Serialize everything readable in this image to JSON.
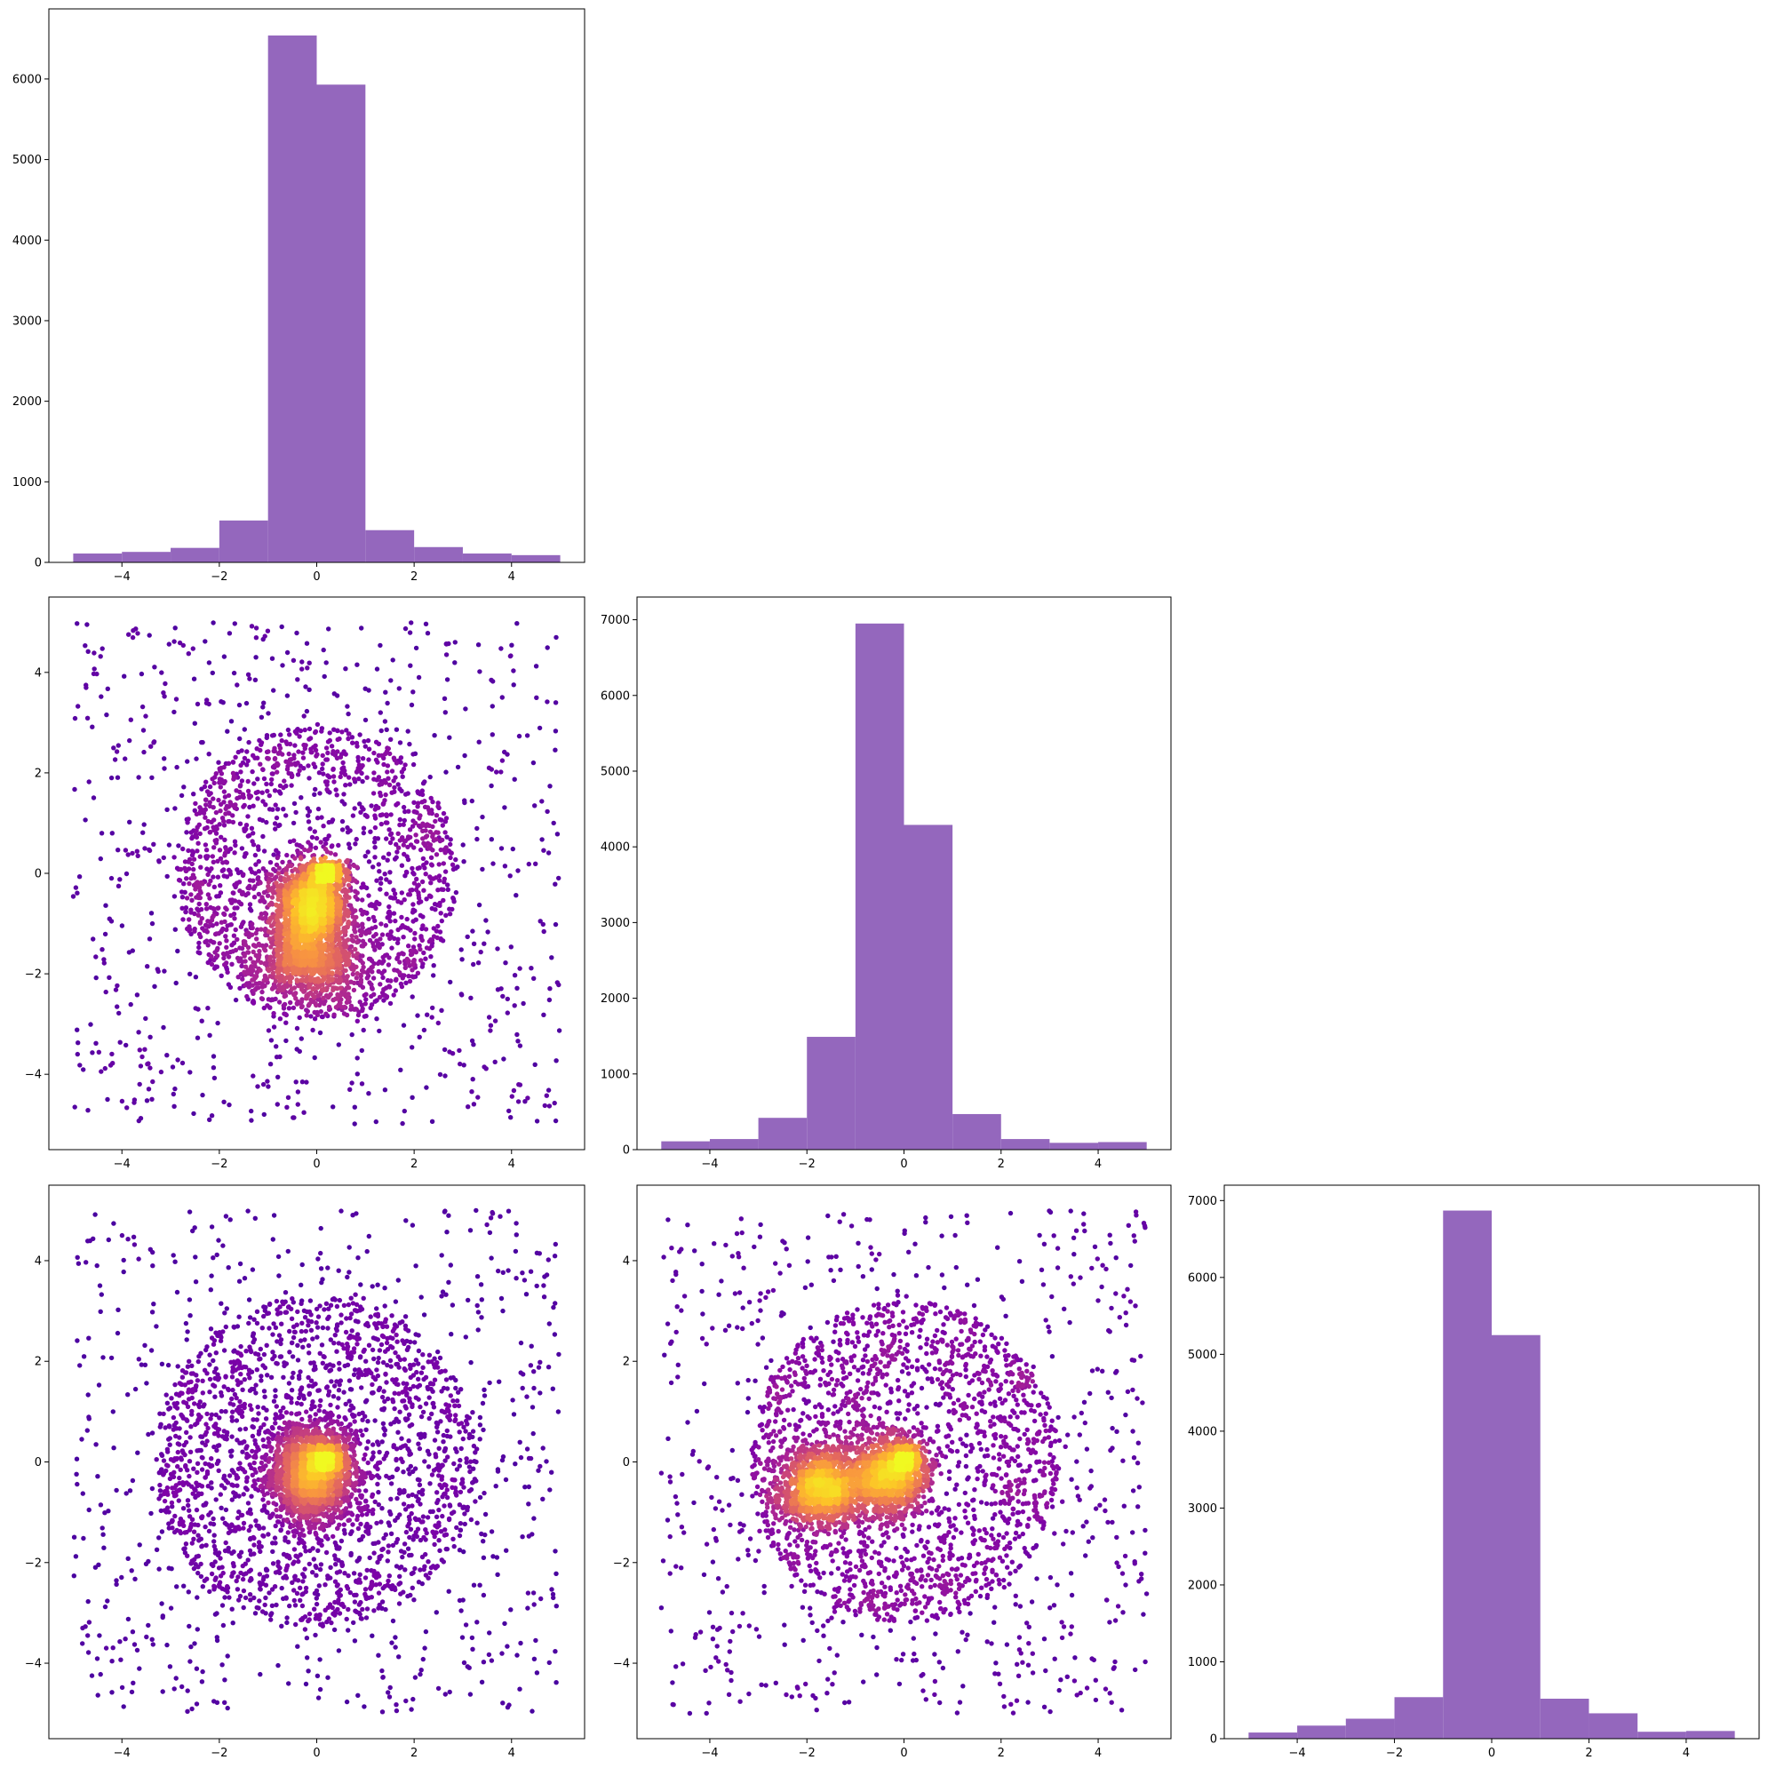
{
  "figure_type": "corner plot (pair plot)",
  "colors": {
    "histogram_fill": "#9467bd",
    "scatter_colormap": "plasma",
    "scatter_low": "#2a0593",
    "scatter_mid": "#b12a90",
    "scatter_high": "#f0f921"
  },
  "chart_data": [
    {
      "panel": "row1-col1",
      "type": "bar",
      "title": "",
      "xlabel": "",
      "ylabel": "",
      "bin_edges": [
        -5,
        -4,
        -3,
        -2,
        -1,
        0,
        1,
        2,
        3,
        4,
        5
      ],
      "values": [
        110,
        130,
        180,
        520,
        6540,
        5930,
        400,
        190,
        110,
        90
      ],
      "xlim": [
        -5.5,
        5.5
      ],
      "ylim": [
        0,
        6870
      ],
      "xticks": [
        "−4",
        "−2",
        "0",
        "2",
        "4"
      ],
      "xtick_values": [
        -4,
        -2,
        0,
        2,
        4
      ],
      "yticks": [
        "0",
        "1000",
        "2000",
        "3000",
        "4000",
        "5000",
        "6000"
      ],
      "ytick_values": [
        0,
        1000,
        2000,
        3000,
        4000,
        5000,
        6000
      ]
    },
    {
      "panel": "row2-col1",
      "type": "scatter",
      "title": "",
      "xlabel": "",
      "ylabel": "",
      "xlim": [
        -5.5,
        5.5
      ],
      "ylim": [
        -5.5,
        5.5
      ],
      "xticks": [
        "−4",
        "−2",
        "0",
        "2",
        "4"
      ],
      "xtick_values": [
        -4,
        -2,
        0,
        2,
        4
      ],
      "yticks": [
        "−4",
        "−2",
        "0",
        "2",
        "4"
      ],
      "ytick_values": [
        -4,
        -2,
        0,
        2,
        4
      ],
      "components": [
        {
          "kind": "uniform",
          "count": 760,
          "range": [
            -5,
            5
          ]
        },
        {
          "kind": "ring",
          "count": 1300,
          "center": [
            0,
            0
          ],
          "radius": [
            0.9,
            2.9
          ]
        },
        {
          "kind": "gaussian",
          "count": 900,
          "center": [
            -0.2,
            -1.7
          ],
          "spread": [
            0.55,
            0.45
          ]
        },
        {
          "kind": "gaussian",
          "count": 1600,
          "center": [
            -0.1,
            -0.6
          ],
          "spread": [
            0.4,
            0.45
          ]
        },
        {
          "kind": "gaussian",
          "count": 250,
          "center": [
            0.25,
            0.05
          ],
          "spread": [
            0.18,
            0.08
          ]
        }
      ]
    },
    {
      "panel": "row2-col2",
      "type": "bar",
      "title": "",
      "xlabel": "",
      "ylabel": "",
      "bin_edges": [
        -5,
        -4,
        -3,
        -2,
        -1,
        0,
        1,
        2,
        3,
        4,
        5
      ],
      "values": [
        110,
        140,
        420,
        1490,
        6950,
        4290,
        470,
        140,
        90,
        100
      ],
      "xlim": [
        -5.5,
        5.5
      ],
      "ylim": [
        0,
        7300
      ],
      "xticks": [
        "−4",
        "−2",
        "0",
        "2",
        "4"
      ],
      "xtick_values": [
        -4,
        -2,
        0,
        2,
        4
      ],
      "yticks": [
        "0",
        "1000",
        "2000",
        "3000",
        "4000",
        "5000",
        "6000",
        "7000"
      ],
      "ytick_values": [
        0,
        1000,
        2000,
        3000,
        4000,
        5000,
        6000,
        7000
      ]
    },
    {
      "panel": "row3-col1",
      "type": "scatter",
      "title": "",
      "xlabel": "",
      "ylabel": "",
      "xlim": [
        -5.5,
        5.5
      ],
      "ylim": [
        -5.5,
        5.5
      ],
      "xticks": [
        "−4",
        "−2",
        "0",
        "2",
        "4"
      ],
      "xtick_values": [
        -4,
        -2,
        0,
        2,
        4
      ],
      "yticks": [
        "−4",
        "−2",
        "0",
        "2",
        "4"
      ],
      "ytick_values": [
        -4,
        -2,
        0,
        2,
        4
      ],
      "components": [
        {
          "kind": "uniform",
          "count": 760,
          "range": [
            -5,
            5
          ]
        },
        {
          "kind": "ring",
          "count": 1500,
          "center": [
            0,
            0
          ],
          "radius": [
            0.9,
            3.3
          ]
        },
        {
          "kind": "gaussian",
          "count": 2300,
          "center": [
            -0.1,
            -0.2
          ],
          "spread": [
            0.45,
            0.5
          ]
        },
        {
          "kind": "gaussian",
          "count": 250,
          "center": [
            0.2,
            0.05
          ],
          "spread": [
            0.18,
            0.07
          ]
        }
      ]
    },
    {
      "panel": "row3-col2",
      "type": "scatter",
      "title": "",
      "xlabel": "",
      "ylabel": "",
      "xlim": [
        -5.5,
        5.5
      ],
      "ylim": [
        -5.5,
        5.5
      ],
      "xticks": [
        "−4",
        "−2",
        "0",
        "2",
        "4"
      ],
      "xtick_values": [
        -4,
        -2,
        0,
        2,
        4
      ],
      "yticks": [
        "−4",
        "−2",
        "0",
        "2",
        "4"
      ],
      "ytick_values": [
        -4,
        -2,
        0,
        2,
        4
      ],
      "components": [
        {
          "kind": "uniform",
          "count": 760,
          "range": [
            -5,
            5
          ]
        },
        {
          "kind": "ring",
          "count": 1500,
          "center": [
            0,
            0
          ],
          "radius": [
            0.9,
            3.2
          ]
        },
        {
          "kind": "gaussian",
          "count": 1200,
          "center": [
            -1.7,
            -0.5
          ],
          "spread": [
            0.45,
            0.38
          ]
        },
        {
          "kind": "gaussian",
          "count": 1300,
          "center": [
            -0.3,
            -0.2
          ],
          "spread": [
            0.45,
            0.45
          ]
        },
        {
          "kind": "gaussian",
          "count": 150,
          "center": [
            0.1,
            0.05
          ],
          "spread": [
            0.12,
            0.1
          ]
        }
      ]
    },
    {
      "panel": "row3-col3",
      "type": "bar",
      "title": "",
      "xlabel": "",
      "ylabel": "",
      "bin_edges": [
        -5,
        -4,
        -3,
        -2,
        -1,
        0,
        1,
        2,
        3,
        4,
        5
      ],
      "values": [
        80,
        170,
        260,
        540,
        6870,
        5250,
        520,
        330,
        90,
        100
      ],
      "xlim": [
        -5.5,
        5.5
      ],
      "ylim": [
        0,
        7200
      ],
      "xticks": [
        "−4",
        "−2",
        "0",
        "2",
        "4"
      ],
      "xtick_values": [
        -4,
        -2,
        0,
        2,
        4
      ],
      "yticks": [
        "0",
        "1000",
        "2000",
        "3000",
        "4000",
        "5000",
        "6000",
        "7000"
      ],
      "ytick_values": [
        0,
        1000,
        2000,
        3000,
        4000,
        5000,
        6000,
        7000
      ]
    }
  ]
}
